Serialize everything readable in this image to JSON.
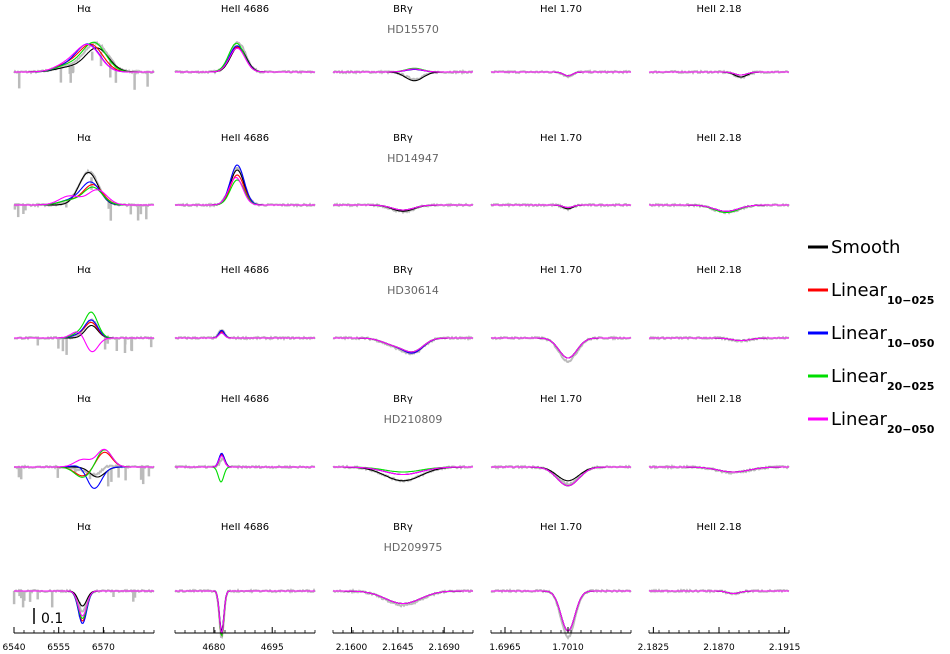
{
  "chart_data": {
    "type": "line",
    "columns": [
      {
        "title": "Hα",
        "range": [
          6540,
          6587
        ],
        "ticks": [
          6540,
          6555,
          6570
        ],
        "tick_labels": [
          "6540",
          "6555",
          "6570"
        ]
      },
      {
        "title": "HeII 4686",
        "range": [
          4670,
          4706
        ],
        "ticks": [
          4680,
          4695
        ],
        "tick_labels": [
          "4680",
          "4695"
        ]
      },
      {
        "title": "BRγ",
        "range": [
          2.1582,
          2.1718
        ],
        "ticks": [
          2.16,
          2.1645,
          2.169
        ],
        "tick_labels": [
          "2.1600",
          "2.1645",
          "2.1690"
        ]
      },
      {
        "title": "HeI 1.70",
        "range": [
          1.6955,
          1.7055
        ],
        "ticks": [
          1.6965,
          1.701
        ],
        "tick_labels": [
          "1.6965",
          "1.7010"
        ]
      },
      {
        "title": "HeII 2.18",
        "range": [
          2.1822,
          2.1918
        ],
        "ticks": [
          2.1825,
          2.187,
          2.1915
        ],
        "tick_labels": [
          "2.1825",
          "2.1870",
          "2.1915"
        ]
      }
    ],
    "stars": [
      "HD15570",
      "HD14947",
      "HD30614",
      "HD210809",
      "HD209975"
    ],
    "series": [
      {
        "name": "Smooth",
        "color": "#000000"
      },
      {
        "name": "Linear",
        "sub": "10−025",
        "color": "#ff0000"
      },
      {
        "name": "Linear",
        "sub": "10−050",
        "color": "#0000ff"
      },
      {
        "name": "Linear",
        "sub": "20−025",
        "color": "#00dd00"
      },
      {
        "name": "Linear",
        "sub": "20−050",
        "color": "#ff00ff"
      }
    ],
    "observed_color": "#bbbbbb",
    "scale_bar_label": "0.1",
    "profiles": [
      [
        {
          "c": 6566,
          "w": 5.5,
          "amps": [
            0.95,
            1.05,
            1.05,
            1.15,
            1.0
          ],
          "shifts": [
            1.0,
            0,
            -0.5,
            0.5,
            -0.5
          ],
          "blue": [
            0.3,
            0.5,
            0.4,
            0.45,
            0.55
          ],
          "noise": "spiky"
        },
        {
          "c": 4686,
          "w": 2.8,
          "amps": [
            1.0,
            1.0,
            1.05,
            1.15,
            0.95
          ],
          "shifts": [
            0.3,
            0,
            0,
            -0.2,
            0
          ],
          "blue": [
            0,
            0,
            0,
            0,
            0
          ],
          "noise": "low"
        },
        {
          "c": 2.1661,
          "w": 0.0012,
          "amps": [
            -0.35,
            0.1,
            0.1,
            0.15,
            0.12
          ],
          "shifts": [
            0,
            0,
            0,
            0,
            0
          ],
          "blue": [
            0,
            0,
            0,
            0,
            0
          ],
          "noise": "low"
        },
        {
          "c": 1.701,
          "w": 0.00045,
          "amps": [
            -0.15,
            -0.15,
            -0.15,
            -0.15,
            -0.15
          ],
          "shifts": [
            0,
            0,
            0,
            0,
            0
          ],
          "blue": [
            0,
            0,
            0,
            0,
            0
          ],
          "noise": "low"
        },
        {
          "c": 2.1885,
          "w": 0.0006,
          "amps": [
            -0.2,
            -0.12,
            -0.12,
            -0.12,
            -0.12
          ],
          "shifts": [
            0,
            0,
            0,
            0,
            0
          ],
          "blue": [
            0,
            0,
            0,
            0,
            0
          ],
          "noise": "low"
        }
      ],
      [
        {
          "c": 6565,
          "w": 4.5,
          "amps": [
            1.3,
            0.8,
            0.9,
            0.7,
            0.6
          ],
          "shifts": [
            0,
            1.0,
            0.5,
            1.0,
            2.0
          ],
          "blue": [
            0,
            0.3,
            0.3,
            0.3,
            0.6
          ],
          "noise": "spiky"
        },
        {
          "c": 4686,
          "w": 2.5,
          "amps": [
            1.4,
            1.2,
            1.6,
            1.0,
            1.1
          ],
          "shifts": [
            0,
            0,
            0,
            0,
            -0.4
          ],
          "blue": [
            0,
            0,
            0,
            0,
            0
          ],
          "noise": "low"
        },
        {
          "c": 2.165,
          "w": 0.0015,
          "amps": [
            -0.25,
            -0.2,
            -0.2,
            -0.2,
            -0.2
          ],
          "shifts": [
            0,
            0,
            0,
            0,
            0
          ],
          "blue": [
            0,
            0,
            0,
            0,
            0
          ],
          "noise": "low"
        },
        {
          "c": 1.701,
          "w": 0.0005,
          "amps": [
            -0.15,
            -0.1,
            -0.1,
            -0.1,
            -0.1
          ],
          "shifts": [
            0,
            0,
            0,
            0,
            0
          ],
          "blue": [
            0,
            0,
            0,
            0,
            0
          ],
          "noise": "low"
        },
        {
          "c": 2.1875,
          "w": 0.0012,
          "amps": [
            -0.25,
            -0.25,
            -0.25,
            -0.3,
            -0.25
          ],
          "shifts": [
            0,
            0,
            0,
            0,
            0
          ],
          "blue": [
            0,
            0,
            0,
            0,
            0
          ],
          "noise": "low"
        }
      ],
      [
        {
          "c": 6566,
          "w": 3.0,
          "amps": [
            0.5,
            0.6,
            0.7,
            1.0,
            -0.6
          ],
          "shifts": [
            0,
            0,
            0,
            0,
            0
          ],
          "blue": [
            0,
            0.2,
            0.2,
            0.3,
            0.5
          ],
          "noise": "spiky"
        },
        {
          "c": 4682,
          "w": 1.0,
          "amps": [
            0.3,
            0.25,
            0.3,
            0.2,
            0.2
          ],
          "shifts": [
            0,
            0,
            0,
            0,
            0
          ],
          "blue": [
            0,
            0,
            0,
            0,
            0
          ],
          "noise": "low"
        },
        {
          "c": 2.166,
          "w": 0.0014,
          "amps": [
            -0.5,
            -0.55,
            -0.55,
            -0.5,
            -0.5
          ],
          "shifts": [
            0,
            0,
            0,
            0,
            0
          ],
          "blue": [
            -0.4,
            -0.4,
            -0.4,
            -0.4,
            -0.4
          ],
          "noise": "low"
        },
        {
          "c": 1.701,
          "w": 0.0009,
          "amps": [
            -0.8,
            -0.8,
            -0.8,
            -0.8,
            -0.8
          ],
          "shifts": [
            0,
            0,
            0,
            0,
            0
          ],
          "blue": [
            0,
            0,
            0,
            0,
            0
          ],
          "noise": "low"
        },
        {
          "c": 2.1885,
          "w": 0.0009,
          "amps": [
            -0.1,
            -0.1,
            -0.1,
            -0.1,
            -0.1
          ],
          "shifts": [
            0,
            0,
            0,
            0,
            0
          ],
          "blue": [
            0,
            0,
            0,
            0,
            0
          ],
          "noise": "low"
        }
      ],
      [
        {
          "c": 6568,
          "w": 3.5,
          "amps": [
            -0.4,
            0.6,
            -0.9,
            0.7,
            0.7
          ],
          "shifts": [
            0,
            2.0,
            -1.0,
            2.0,
            2.0
          ],
          "blue": [
            0,
            -0.6,
            0.2,
            -0.7,
            0.5
          ],
          "noise": "spiky"
        },
        {
          "c": 4682,
          "w": 1.0,
          "amps": [
            0.5,
            0.5,
            0.55,
            -0.6,
            0.45
          ],
          "shifts": [
            0.3,
            0,
            0,
            -0.5,
            0
          ],
          "blue": [
            0,
            0,
            0,
            0,
            0
          ],
          "noise": "low"
        },
        {
          "c": 2.165,
          "w": 0.0025,
          "amps": [
            -0.55,
            -0.3,
            -0.3,
            -0.2,
            -0.3
          ],
          "shifts": [
            0,
            0,
            0,
            0,
            0
          ],
          "blue": [
            0,
            0,
            0,
            0,
            0
          ],
          "noise": "low"
        },
        {
          "c": 1.701,
          "w": 0.0011,
          "amps": [
            -0.55,
            -0.75,
            -0.75,
            -0.75,
            -0.75
          ],
          "shifts": [
            0,
            0,
            0,
            0,
            0
          ],
          "blue": [
            0,
            0,
            0,
            0,
            0
          ],
          "noise": "low"
        },
        {
          "c": 2.188,
          "w": 0.0015,
          "amps": [
            -0.2,
            -0.2,
            -0.2,
            -0.2,
            -0.2
          ],
          "shifts": [
            0,
            0,
            0,
            0,
            0
          ],
          "blue": [
            0,
            0,
            0,
            0,
            0
          ],
          "noise": "low"
        }
      ],
      [
        {
          "c": 6563,
          "w": 2.0,
          "amps": [
            -0.6,
            -1.2,
            -1.3,
            -1.1,
            -1.0
          ],
          "shifts": [
            0,
            0,
            0,
            0,
            0
          ],
          "blue": [
            0,
            0,
            0,
            0,
            0
          ],
          "noise": "spiky"
        },
        {
          "c": 4682,
          "w": 0.8,
          "amps": [
            -1.6,
            -1.8,
            -1.7,
            -1.8,
            -1.7
          ],
          "shifts": [
            0,
            0,
            0,
            0,
            0
          ],
          "blue": [
            0,
            0,
            0,
            0,
            0
          ],
          "noise": "low"
        },
        {
          "c": 2.165,
          "w": 0.0024,
          "amps": [
            -0.5,
            -0.5,
            -0.5,
            -0.5,
            -0.5
          ],
          "shifts": [
            0,
            0,
            0,
            0,
            0
          ],
          "blue": [
            0,
            0,
            0,
            0,
            0
          ],
          "noise": "low"
        },
        {
          "c": 1.701,
          "w": 0.0007,
          "amps": [
            -1.6,
            -1.6,
            -1.6,
            -1.6,
            -1.6
          ],
          "shifts": [
            0,
            0,
            0,
            0,
            0
          ],
          "blue": [
            0,
            0,
            0,
            0,
            0
          ],
          "noise": "low"
        },
        {
          "c": 2.188,
          "w": 0.0006,
          "amps": [
            -0.1,
            -0.1,
            -0.1,
            -0.1,
            -0.1
          ],
          "shifts": [
            0,
            0,
            0,
            0,
            0
          ],
          "blue": [
            0,
            0,
            0,
            0,
            0
          ],
          "noise": "low"
        }
      ]
    ]
  }
}
